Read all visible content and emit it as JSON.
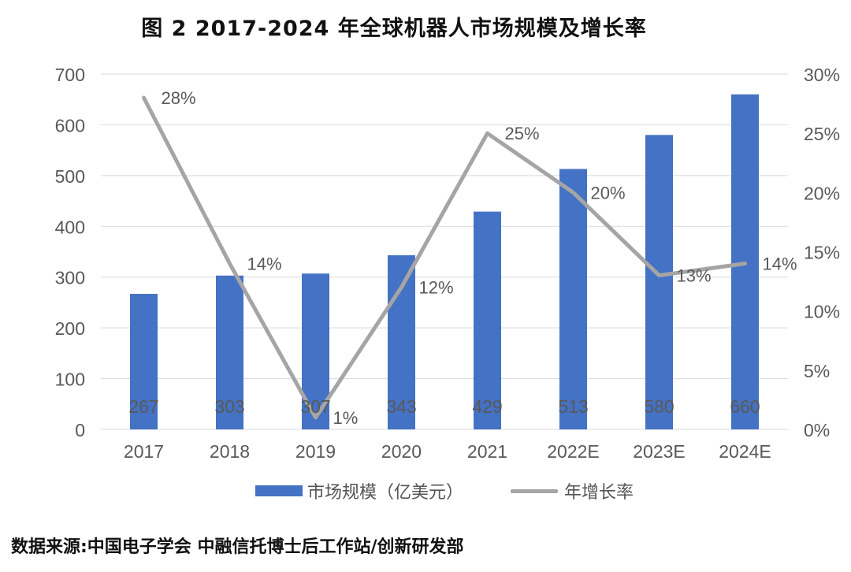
{
  "title": "图 2 2017-2024 年全球机器人市场规模及增长率",
  "source": "数据来源:中国电子学会 中融信托博士后工作站/创新研发部",
  "colors": {
    "bar": "#4472C4",
    "line": "#A5A5A5",
    "axis_text": "#595959",
    "grid": "#D9D9D9"
  },
  "legend": {
    "bar_label": "市场规模（亿美元）",
    "line_label": "年增长率"
  },
  "chart_data": {
    "type": "bar",
    "categories": [
      "2017",
      "2018",
      "2019",
      "2020",
      "2021",
      "2022E",
      "2023E",
      "2024E"
    ],
    "series": [
      {
        "name": "市场规模（亿美元）",
        "type": "bar",
        "axis": "left",
        "values": [
          267,
          303,
          307,
          343,
          429,
          513,
          580,
          660
        ]
      },
      {
        "name": "年增长率",
        "type": "line",
        "axis": "right",
        "values": [
          28,
          14,
          1,
          12,
          25,
          20,
          13,
          14
        ]
      }
    ],
    "bar_labels": [
      "267",
      "303",
      "307",
      "343",
      "429",
      "513",
      "580",
      "660"
    ],
    "line_labels": [
      "28%",
      "14%",
      "1%",
      "12%",
      "25%",
      "20%",
      "13%",
      "14%"
    ],
    "left_axis": {
      "ylim": [
        0,
        700
      ],
      "ticks": [
        "0",
        "100",
        "200",
        "300",
        "400",
        "500",
        "600",
        "700"
      ]
    },
    "right_axis": {
      "ylim": [
        0,
        30
      ],
      "ticks": [
        "0%",
        "5%",
        "10%",
        "15%",
        "20%",
        "25%",
        "30%"
      ]
    },
    "grid": true,
    "legend_position": "bottom"
  }
}
